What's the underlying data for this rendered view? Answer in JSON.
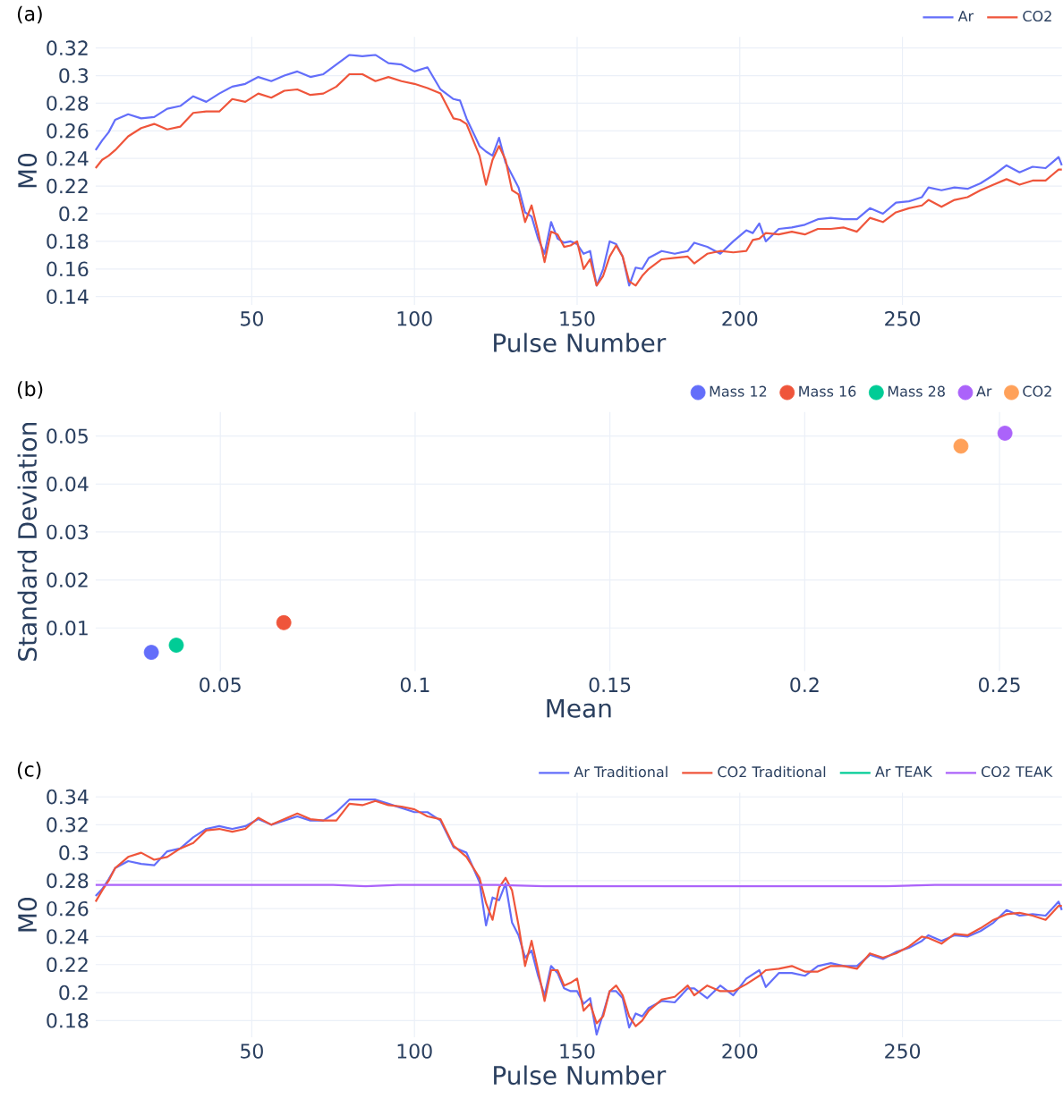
{
  "chart_data": [
    {
      "type": "line",
      "annotations": [
        "(a)"
      ],
      "xlabel": "Pulse Number",
      "ylabel": "M0",
      "xlim": [
        2,
        299
      ],
      "ylim": [
        0.134,
        0.328
      ],
      "xticks": [
        50,
        100,
        150,
        200,
        250
      ],
      "yticks": [
        0.14,
        0.16,
        0.18,
        0.2,
        0.22,
        0.24,
        0.26,
        0.28,
        0.3,
        0.32
      ],
      "grid": true,
      "legend": "top right",
      "marker": "none",
      "line_style": "solid",
      "x": [
        2,
        4,
        6,
        8,
        12,
        16,
        20,
        24,
        28,
        32,
        36,
        40,
        44,
        48,
        52,
        56,
        60,
        64,
        68,
        72,
        76,
        80,
        84,
        88,
        92,
        96,
        100,
        104,
        108,
        112,
        114,
        116,
        120,
        122,
        124,
        126,
        128,
        130,
        132,
        134,
        136,
        138,
        140,
        142,
        144,
        146,
        148,
        150,
        152,
        154,
        156,
        158,
        160,
        162,
        164,
        166,
        168,
        170,
        172,
        176,
        180,
        184,
        186,
        190,
        194,
        198,
        202,
        204,
        206,
        208,
        212,
        216,
        220,
        224,
        228,
        232,
        236,
        240,
        244,
        248,
        252,
        256,
        258,
        262,
        266,
        270,
        274,
        278,
        282,
        286,
        290,
        294,
        296,
        298,
        299
      ],
      "series": [
        {
          "name": "Ar",
          "color": "#636efa",
          "values": [
            0.246,
            0.253,
            0.259,
            0.268,
            0.272,
            0.269,
            0.27,
            0.276,
            0.278,
            0.285,
            0.281,
            0.287,
            0.292,
            0.294,
            0.299,
            0.296,
            0.3,
            0.303,
            0.299,
            0.301,
            0.308,
            0.315,
            0.314,
            0.315,
            0.309,
            0.308,
            0.303,
            0.306,
            0.29,
            0.283,
            0.282,
            0.269,
            0.249,
            0.245,
            0.242,
            0.255,
            0.237,
            0.228,
            0.219,
            0.201,
            0.198,
            0.182,
            0.171,
            0.194,
            0.182,
            0.179,
            0.18,
            0.178,
            0.171,
            0.173,
            0.148,
            0.16,
            0.18,
            0.178,
            0.169,
            0.148,
            0.161,
            0.16,
            0.168,
            0.173,
            0.171,
            0.173,
            0.179,
            0.176,
            0.171,
            0.18,
            0.188,
            0.186,
            0.193,
            0.18,
            0.189,
            0.19,
            0.192,
            0.196,
            0.197,
            0.196,
            0.196,
            0.204,
            0.2,
            0.208,
            0.209,
            0.212,
            0.219,
            0.217,
            0.219,
            0.218,
            0.222,
            0.228,
            0.235,
            0.23,
            0.234,
            0.233,
            0.237,
            0.241,
            0.235
          ]
        },
        {
          "name": "CO2",
          "color": "#ef553b",
          "values": [
            0.233,
            0.239,
            0.242,
            0.246,
            0.256,
            0.262,
            0.265,
            0.261,
            0.263,
            0.273,
            0.274,
            0.274,
            0.283,
            0.281,
            0.287,
            0.284,
            0.289,
            0.29,
            0.286,
            0.287,
            0.292,
            0.301,
            0.301,
            0.296,
            0.299,
            0.296,
            0.294,
            0.291,
            0.287,
            0.269,
            0.268,
            0.265,
            0.242,
            0.221,
            0.239,
            0.249,
            0.239,
            0.217,
            0.214,
            0.194,
            0.206,
            0.187,
            0.165,
            0.187,
            0.185,
            0.176,
            0.177,
            0.18,
            0.16,
            0.167,
            0.148,
            0.155,
            0.169,
            0.177,
            0.169,
            0.151,
            0.148,
            0.155,
            0.16,
            0.167,
            0.168,
            0.169,
            0.164,
            0.171,
            0.173,
            0.172,
            0.173,
            0.181,
            0.182,
            0.186,
            0.185,
            0.187,
            0.185,
            0.189,
            0.189,
            0.19,
            0.187,
            0.197,
            0.194,
            0.201,
            0.204,
            0.206,
            0.21,
            0.205,
            0.21,
            0.212,
            0.217,
            0.221,
            0.225,
            0.221,
            0.224,
            0.224,
            0.228,
            0.232,
            0.232
          ]
        }
      ]
    },
    {
      "type": "scatter",
      "annotations": [
        "(b)"
      ],
      "xlabel": "Mean",
      "ylabel": "Standard Deviation",
      "xlim": [
        0.018,
        0.266
      ],
      "ylim": [
        0.001,
        0.055
      ],
      "xticks": [
        0.05,
        0.1,
        0.15,
        0.2,
        0.25
      ],
      "yticks": [
        0.01,
        0.02,
        0.03,
        0.04,
        0.05
      ],
      "grid": true,
      "legend": "top right",
      "marker": "circle",
      "series": [
        {
          "name": "Mass 12",
          "color": "#636efa",
          "x": [
            0.0323
          ],
          "values": [
            0.0049
          ]
        },
        {
          "name": "Mass 16",
          "color": "#ef553b",
          "x": [
            0.0663
          ],
          "values": [
            0.0111
          ]
        },
        {
          "name": "Mass 28",
          "color": "#00cc96",
          "x": [
            0.0387
          ],
          "values": [
            0.0064
          ]
        },
        {
          "name": "Ar",
          "color": "#ab63fa",
          "x": [
            0.2514
          ],
          "values": [
            0.0506
          ]
        },
        {
          "name": "CO2",
          "color": "#ffa15a",
          "x": [
            0.2401
          ],
          "values": [
            0.0479
          ]
        }
      ]
    },
    {
      "type": "line",
      "annotations": [
        "(c)"
      ],
      "xlabel": "Pulse Number",
      "ylabel": "M0",
      "xlim": [
        2,
        299
      ],
      "ylim": [
        0.168,
        0.343
      ],
      "xticks": [
        50,
        100,
        150,
        200,
        250
      ],
      "yticks": [
        0.18,
        0.2,
        0.22,
        0.24,
        0.26,
        0.28,
        0.3,
        0.32,
        0.34
      ],
      "grid": true,
      "legend": "top right",
      "marker": "none",
      "line_style": "solid",
      "x": [
        2,
        4,
        6,
        8,
        12,
        16,
        20,
        24,
        28,
        32,
        36,
        40,
        44,
        48,
        52,
        56,
        60,
        64,
        68,
        72,
        76,
        80,
        84,
        88,
        92,
        96,
        100,
        104,
        108,
        112,
        116,
        120,
        122,
        124,
        126,
        128,
        130,
        132,
        134,
        136,
        138,
        140,
        142,
        144,
        146,
        148,
        150,
        152,
        154,
        156,
        158,
        160,
        162,
        164,
        166,
        168,
        170,
        172,
        176,
        180,
        184,
        186,
        190,
        194,
        198,
        202,
        206,
        208,
        212,
        216,
        220,
        224,
        228,
        232,
        236,
        240,
        244,
        248,
        252,
        256,
        258,
        262,
        266,
        270,
        274,
        278,
        282,
        286,
        290,
        294,
        296,
        298,
        299
      ],
      "series": [
        {
          "name": "Ar Traditional",
          "color": "#636efa",
          "values": [
            0.269,
            0.274,
            0.281,
            0.289,
            0.294,
            0.292,
            0.291,
            0.301,
            0.303,
            0.311,
            0.317,
            0.319,
            0.317,
            0.319,
            0.324,
            0.32,
            0.323,
            0.326,
            0.323,
            0.323,
            0.329,
            0.338,
            0.338,
            0.338,
            0.335,
            0.332,
            0.329,
            0.329,
            0.323,
            0.304,
            0.3,
            0.279,
            0.248,
            0.268,
            0.266,
            0.278,
            0.25,
            0.241,
            0.225,
            0.23,
            0.212,
            0.198,
            0.219,
            0.214,
            0.203,
            0.201,
            0.201,
            0.192,
            0.196,
            0.17,
            0.185,
            0.201,
            0.201,
            0.196,
            0.175,
            0.185,
            0.183,
            0.189,
            0.194,
            0.193,
            0.203,
            0.203,
            0.196,
            0.205,
            0.198,
            0.21,
            0.216,
            0.204,
            0.214,
            0.214,
            0.212,
            0.219,
            0.221,
            0.219,
            0.219,
            0.227,
            0.224,
            0.229,
            0.232,
            0.237,
            0.241,
            0.237,
            0.241,
            0.24,
            0.244,
            0.25,
            0.259,
            0.255,
            0.256,
            0.255,
            0.26,
            0.265,
            0.259
          ]
        },
        {
          "name": "CO2 Traditional",
          "color": "#ef553b",
          "values": [
            0.265,
            0.273,
            0.28,
            0.289,
            0.297,
            0.3,
            0.295,
            0.297,
            0.303,
            0.307,
            0.316,
            0.317,
            0.315,
            0.317,
            0.325,
            0.32,
            0.324,
            0.328,
            0.324,
            0.323,
            0.323,
            0.335,
            0.334,
            0.337,
            0.334,
            0.333,
            0.331,
            0.326,
            0.324,
            0.305,
            0.297,
            0.282,
            0.264,
            0.252,
            0.275,
            0.282,
            0.273,
            0.248,
            0.219,
            0.237,
            0.216,
            0.194,
            0.216,
            0.216,
            0.205,
            0.207,
            0.21,
            0.187,
            0.192,
            0.178,
            0.183,
            0.201,
            0.205,
            0.198,
            0.183,
            0.176,
            0.18,
            0.187,
            0.195,
            0.197,
            0.205,
            0.198,
            0.205,
            0.201,
            0.201,
            0.206,
            0.212,
            0.216,
            0.217,
            0.219,
            0.215,
            0.215,
            0.219,
            0.219,
            0.217,
            0.228,
            0.225,
            0.228,
            0.233,
            0.24,
            0.239,
            0.235,
            0.242,
            0.241,
            0.246,
            0.252,
            0.256,
            0.257,
            0.255,
            0.252,
            0.257,
            0.262,
            0.262
          ]
        },
        {
          "name": "Ar TEAK",
          "color": "#00cc96",
          "values": [
            null,
            null,
            null,
            null,
            null,
            null,
            null,
            null,
            null,
            null,
            null,
            null,
            null,
            null,
            null,
            null,
            null,
            null,
            null,
            null,
            null,
            null,
            null,
            null,
            null,
            null,
            null,
            null,
            null,
            null,
            null,
            null,
            null,
            null,
            null,
            null,
            null,
            null,
            null,
            null,
            null,
            null,
            null,
            null,
            null,
            null,
            null,
            null,
            null,
            null,
            null,
            null,
            null,
            null,
            null,
            null,
            null,
            null,
            null,
            null,
            null,
            null,
            null,
            null,
            null,
            null,
            null,
            null,
            null,
            null,
            null,
            null,
            null,
            null,
            null,
            null,
            null,
            null,
            null,
            null,
            null,
            null,
            null,
            null,
            null,
            null,
            null,
            null,
            null,
            null,
            null,
            null,
            null
          ]
        },
        {
          "name": "CO2 TEAK",
          "color": "#ab63fa",
          "x": [
            2,
            15,
            30,
            45,
            60,
            75,
            85,
            95,
            110,
            125,
            140,
            155,
            170,
            185,
            200,
            215,
            230,
            245,
            260,
            275,
            290,
            299
          ],
          "values": [
            0.277,
            0.277,
            0.277,
            0.277,
            0.277,
            0.277,
            0.276,
            0.277,
            0.277,
            0.277,
            0.276,
            0.276,
            0.276,
            0.276,
            0.276,
            0.276,
            0.276,
            0.276,
            0.277,
            0.277,
            0.277,
            0.277
          ]
        }
      ]
    }
  ]
}
